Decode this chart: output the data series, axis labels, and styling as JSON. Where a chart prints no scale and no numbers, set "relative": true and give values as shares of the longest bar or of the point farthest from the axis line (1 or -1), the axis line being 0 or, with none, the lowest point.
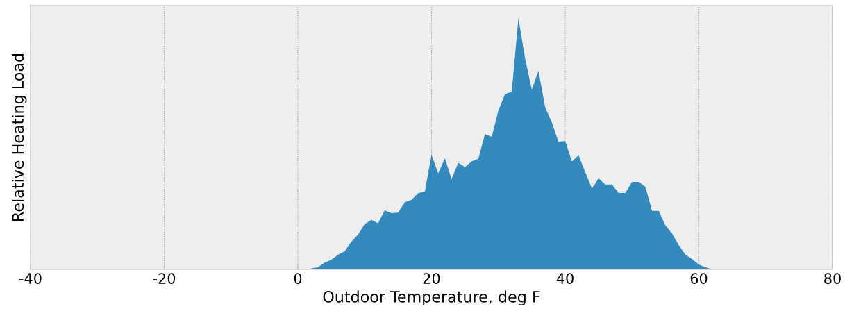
{
  "chart_data": {
    "type": "area",
    "xlabel": "Outdoor Temperature, deg F",
    "ylabel": "Relative Heating Load",
    "relative": true,
    "grid": "x",
    "xlim": [
      -40,
      80
    ],
    "xticks": [
      -40,
      -20,
      0,
      20,
      40,
      60,
      80
    ],
    "x": [
      2,
      3,
      4,
      5,
      6,
      7,
      8,
      9,
      10,
      11,
      12,
      13,
      14,
      15,
      16,
      17,
      18,
      19,
      20,
      21,
      22,
      23,
      24,
      25,
      26,
      27,
      28,
      29,
      30,
      31,
      32,
      33,
      34,
      35,
      36,
      37,
      38,
      39,
      40,
      41,
      42,
      43,
      44,
      45,
      46,
      47,
      48,
      49,
      50,
      51,
      52,
      53,
      54,
      55,
      56,
      57,
      58,
      59,
      60,
      61,
      62
    ],
    "series": [
      {
        "color": "#348abd",
        "values": [
          0.004,
          0.008,
          0.027,
          0.038,
          0.058,
          0.072,
          0.11,
          0.138,
          0.18,
          0.197,
          0.184,
          0.235,
          0.224,
          0.226,
          0.267,
          0.276,
          0.303,
          0.31,
          0.456,
          0.382,
          0.442,
          0.359,
          0.424,
          0.407,
          0.43,
          0.44,
          0.539,
          0.528,
          0.632,
          0.698,
          0.707,
          1,
          0.839,
          0.716,
          0.79,
          0.645,
          0.585,
          0.507,
          0.511,
          0.43,
          0.454,
          0.387,
          0.322,
          0.362,
          0.338,
          0.338,
          0.304,
          0.304,
          0.348,
          0.348,
          0.329,
          0.233,
          0.233,
          0.175,
          0.142,
          0.096,
          0.059,
          0.041,
          0.019,
          0.008,
          0
        ]
      }
    ]
  }
}
